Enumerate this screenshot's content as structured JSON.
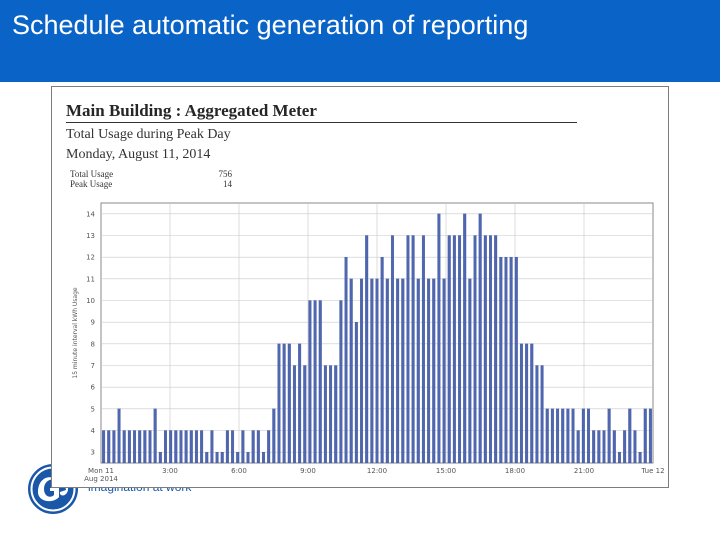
{
  "slide": {
    "title": "Schedule automatic generation of reporting",
    "header_color": "#0a64c8",
    "logo_icon": "ge-monogram-icon",
    "logo_tagline": "imagination at work"
  },
  "report": {
    "title": "Main Building : Aggregated Meter",
    "subtitle": "Total Usage during Peak Day",
    "date": "Monday, August 11, 2014",
    "stats": [
      {
        "label": "Total Usage",
        "value": "756"
      },
      {
        "label": "Peak Usage",
        "value": "14"
      }
    ]
  },
  "chart_data": {
    "type": "bar",
    "ylabel": "15 minute interval kWh Usage",
    "ylim": [
      2.5,
      14.5
    ],
    "y_ticks": [
      "3",
      "4",
      "5",
      "6",
      "7",
      "8",
      "9",
      "10",
      "11",
      "12",
      "13",
      "14"
    ],
    "x_ticks": [
      {
        "label": "Mon 11",
        "sublabel": "Aug 2014"
      },
      {
        "label": "3:00",
        "sublabel": ""
      },
      {
        "label": "6:00",
        "sublabel": ""
      },
      {
        "label": "9:00",
        "sublabel": ""
      },
      {
        "label": "12:00",
        "sublabel": ""
      },
      {
        "label": "15:00",
        "sublabel": ""
      },
      {
        "label": "18:00",
        "sublabel": ""
      },
      {
        "label": "21:00",
        "sublabel": ""
      },
      {
        "label": "Tue 12",
        "sublabel": ""
      }
    ],
    "grid": true,
    "bar_color": "#4f66b0",
    "interval": "15 minutes",
    "values": [
      4,
      4,
      4,
      5,
      4,
      4,
      4,
      4,
      4,
      4,
      5,
      3,
      4,
      4,
      4,
      4,
      4,
      4,
      4,
      4,
      3,
      4,
      3,
      3,
      4,
      4,
      3,
      4,
      3,
      4,
      4,
      3,
      4,
      5,
      8,
      8,
      8,
      7,
      8,
      7,
      10,
      10,
      10,
      7,
      7,
      7,
      10,
      12,
      11,
      9,
      11,
      13,
      11,
      11,
      12,
      11,
      13,
      11,
      11,
      13,
      13,
      11,
      13,
      11,
      11,
      14,
      11,
      13,
      13,
      13,
      14,
      11,
      13,
      14,
      13,
      13,
      13,
      12,
      12,
      12,
      12,
      8,
      8,
      8,
      7,
      7,
      5,
      5,
      5,
      5,
      5,
      5,
      4,
      5,
      5,
      4,
      4,
      4,
      5,
      4,
      3,
      4,
      5,
      4,
      3,
      5,
      5
    ]
  }
}
